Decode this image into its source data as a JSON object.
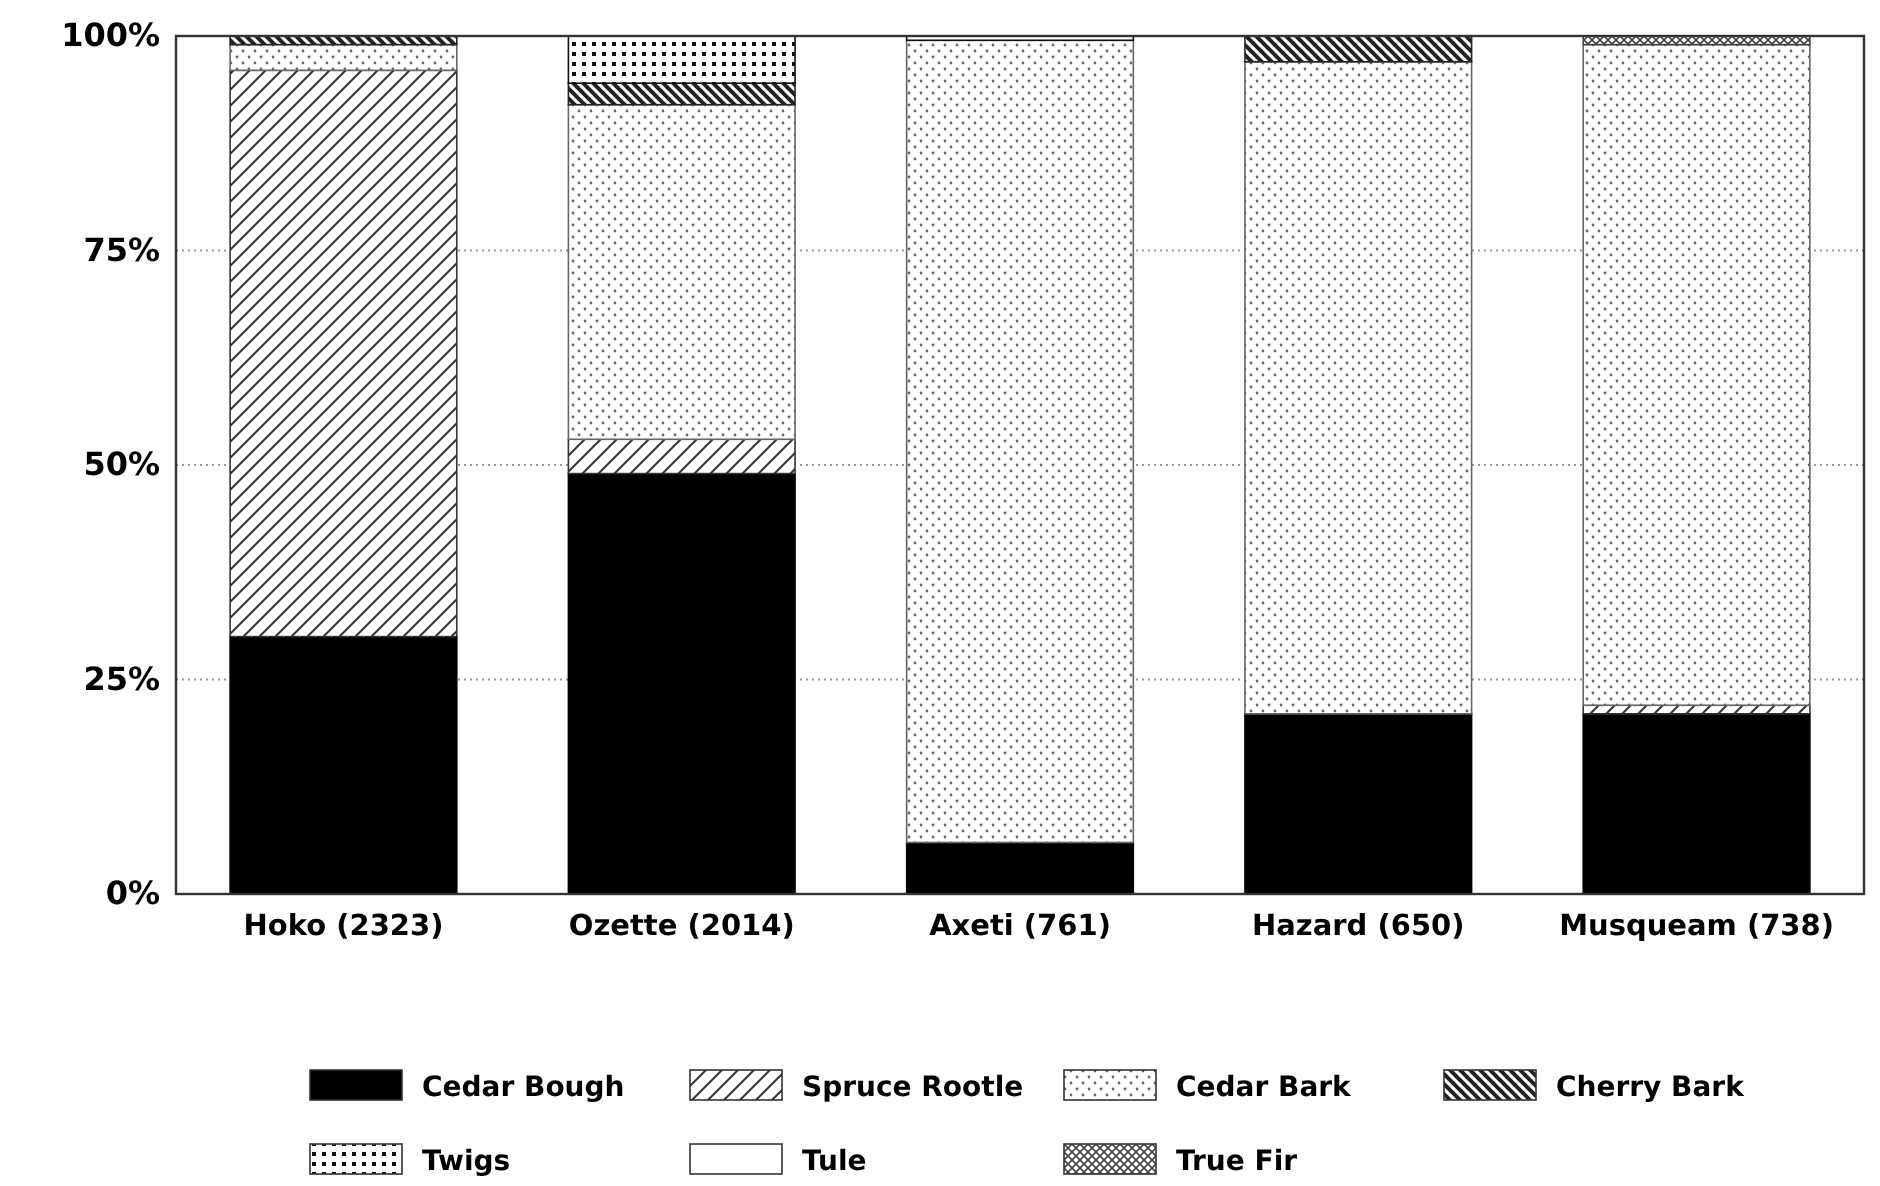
{
  "chart_data": {
    "type": "bar",
    "stacked": true,
    "categories": [
      "Hoko (2323)",
      "Ozette (2014)",
      "Axeti (761)",
      "Hazard (650)",
      "Musqueam (738)"
    ],
    "series": [
      {
        "name": "Cedar Bough",
        "color": "#000000",
        "values": [
          30,
          49,
          6,
          21,
          21
        ]
      },
      {
        "name": "Spruce Rootle",
        "color": "#333333",
        "values": [
          66,
          4,
          0,
          0,
          1
        ]
      },
      {
        "name": "Cedar Bark",
        "color": "#666666",
        "values": [
          3,
          39,
          93.5,
          76,
          77
        ]
      },
      {
        "name": "Cherry Bark",
        "color": "#222222",
        "values": [
          1,
          2.5,
          0,
          3,
          0
        ]
      },
      {
        "name": "Twigs",
        "color": "#111111",
        "values": [
          0,
          5.5,
          0.5,
          0,
          0
        ]
      },
      {
        "name": "Tule",
        "color": "#ffffff",
        "values": [
          0,
          0,
          0,
          0,
          0
        ]
      },
      {
        "name": "True Fir",
        "color": "#444444",
        "values": [
          0,
          0,
          0,
          0,
          1
        ]
      }
    ],
    "ylim": [
      0,
      100
    ],
    "yticks": [
      {
        "value": 0,
        "label": "0%"
      },
      {
        "value": 25,
        "label": "25%"
      },
      {
        "value": 50,
        "label": "50%"
      },
      {
        "value": 75,
        "label": "75%"
      },
      {
        "value": 100,
        "label": "100%"
      }
    ],
    "grid": "y",
    "legend": "bottom"
  }
}
